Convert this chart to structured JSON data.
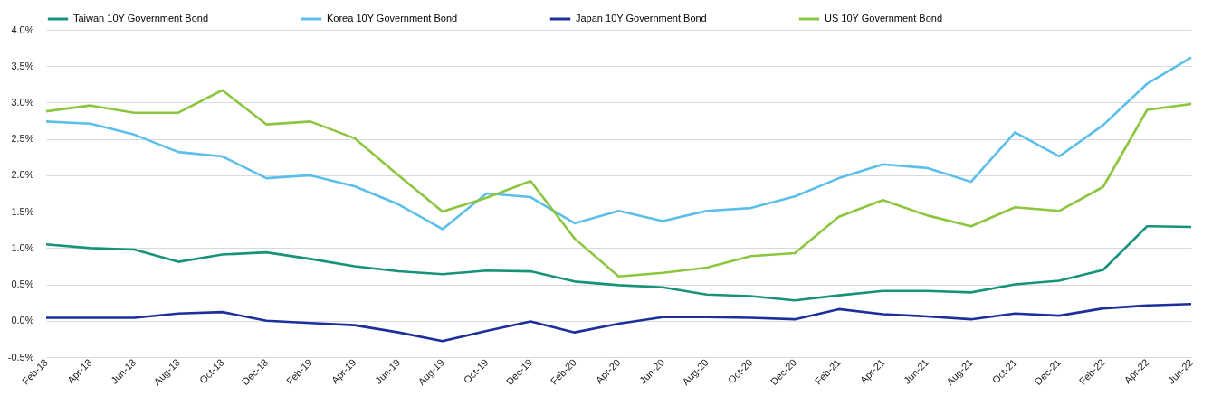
{
  "chart_data": {
    "type": "line",
    "categories": [
      "Feb-18",
      "Apr-18",
      "Jun-18",
      "Aug-18",
      "Oct-18",
      "Dec-18",
      "Feb-19",
      "Apr-19",
      "Jun-19",
      "Aug-19",
      "Oct-19",
      "Dec-19",
      "Feb-20",
      "Apr-20",
      "Jun-20",
      "Aug-20",
      "Oct-20",
      "Dec-20",
      "Feb-21",
      "Apr-21",
      "Jun-21",
      "Aug-21",
      "Oct-21",
      "Dec-21",
      "Feb-22",
      "Apr-22",
      "Jun-22"
    ],
    "series": [
      {
        "name": "Taiwan 10Y Government Bond",
        "color": "#16937a",
        "values": [
          1.05,
          1.0,
          0.98,
          0.81,
          0.91,
          0.94,
          0.85,
          0.75,
          0.68,
          0.64,
          0.69,
          0.68,
          0.54,
          0.49,
          0.46,
          0.36,
          0.34,
          0.28,
          0.35,
          0.41,
          0.41,
          0.39,
          0.5,
          0.55,
          0.7,
          1.3,
          1.29
        ]
      },
      {
        "name": "Korea 10Y Government Bond",
        "color": "#5bbfea",
        "values": [
          2.74,
          2.71,
          2.56,
          2.32,
          2.26,
          1.96,
          2.0,
          1.85,
          1.6,
          1.26,
          1.75,
          1.7,
          1.34,
          1.51,
          1.37,
          1.51,
          1.55,
          1.71,
          1.96,
          2.15,
          2.1,
          1.91,
          2.59,
          2.26,
          2.69,
          3.26,
          3.62
        ]
      },
      {
        "name": "Japan 10Y Government Bond",
        "color": "#1d2f9c",
        "values": [
          0.04,
          0.04,
          0.04,
          0.1,
          0.12,
          0.0,
          -0.03,
          -0.06,
          -0.16,
          -0.28,
          -0.14,
          -0.01,
          -0.16,
          -0.04,
          0.05,
          0.05,
          0.04,
          0.02,
          0.16,
          0.09,
          0.06,
          0.02,
          0.1,
          0.07,
          0.17,
          0.21,
          0.23
        ]
      },
      {
        "name": "US 10Y Government Bond",
        "color": "#8cc63f",
        "values": [
          2.88,
          2.96,
          2.86,
          2.86,
          3.17,
          2.7,
          2.74,
          2.51,
          2.0,
          1.5,
          1.69,
          1.92,
          1.13,
          0.61,
          0.66,
          0.73,
          0.89,
          0.93,
          1.43,
          1.66,
          1.45,
          1.3,
          1.56,
          1.51,
          1.84,
          2.9,
          2.98
        ]
      }
    ],
    "ylim": [
      -0.5,
      4.0
    ],
    "yticks": [
      {
        "value": -0.5,
        "label": "-0.5%"
      },
      {
        "value": 0,
        "label": "0.0%"
      },
      {
        "value": 0.5,
        "label": "0.5%"
      },
      {
        "value": 1,
        "label": "1.0%"
      },
      {
        "value": 1.5,
        "label": "1.5%"
      },
      {
        "value": 2,
        "label": "2.0%"
      },
      {
        "value": 2.5,
        "label": "2.5%"
      },
      {
        "value": 3,
        "label": "3.0%"
      },
      {
        "value": 3.5,
        "label": "3.5%"
      },
      {
        "value": 4,
        "label": "4.0%"
      }
    ],
    "grid": "y",
    "legend": "top",
    "marker": "none",
    "line_style": "solid"
  }
}
